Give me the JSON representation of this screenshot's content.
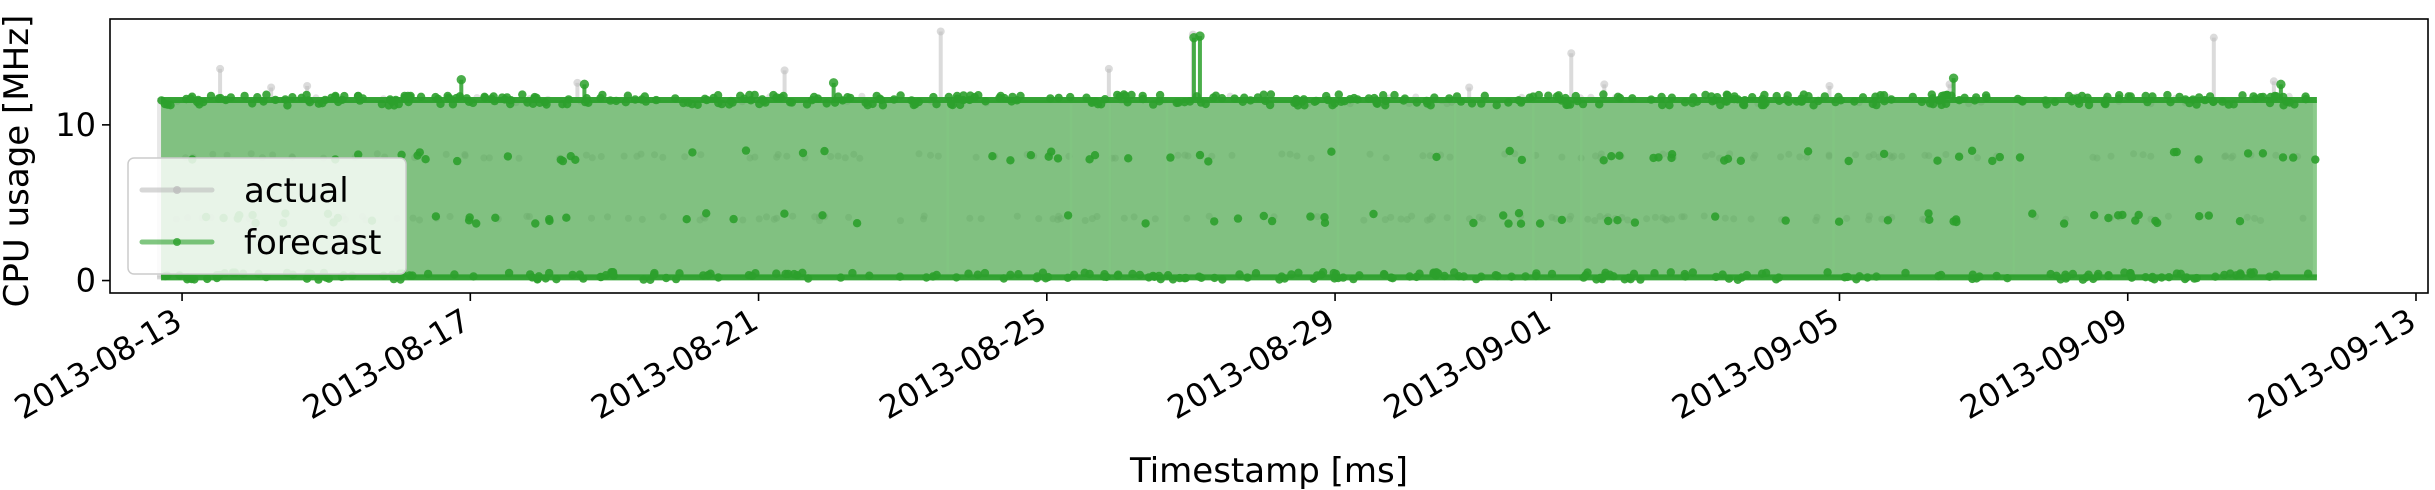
{
  "chart_data": {
    "type": "line",
    "title": "",
    "xlabel": "Timestamp [ms]",
    "ylabel": "CPU usage [MHz]",
    "ylim": [
      -0.8,
      16.8
    ],
    "x_range": [
      "2013-08-12T00:00",
      "2013-09-13T04:00"
    ],
    "x_data_range": [
      "2013-08-12T17:00",
      "2013-09-11T15:00"
    ],
    "x_ticks": [
      "2013-08-13",
      "2013-08-17",
      "2013-08-21",
      "2013-08-25",
      "2013-08-29",
      "2013-09-01",
      "2013-09-05",
      "2013-09-09",
      "2013-09-13"
    ],
    "y_ticks": [
      0,
      10
    ],
    "legend": {
      "placement": "lower-left",
      "entries": [
        "actual",
        "forecast"
      ]
    },
    "series": [
      {
        "name": "actual",
        "color": "#bdbdbd",
        "typical_range": [
          0.2,
          11.6
        ],
        "levels": [
          0.3,
          4.0,
          8.0,
          11.6
        ],
        "spikes": [
          {
            "t": "2013-08-13T14:00",
            "value": 13.6
          },
          {
            "t": "2013-08-14T07:00",
            "value": 12.4
          },
          {
            "t": "2013-08-14T19:00",
            "value": 12.5
          },
          {
            "t": "2013-08-18T13:00",
            "value": 12.7
          },
          {
            "t": "2013-08-21T10:00",
            "value": 13.5
          },
          {
            "t": "2013-08-23T14:00",
            "value": 16.0
          },
          {
            "t": "2013-08-25T22:00",
            "value": 13.6
          },
          {
            "t": "2013-08-27T02:00",
            "value": 15.8
          },
          {
            "t": "2013-08-30T22:00",
            "value": 12.4
          },
          {
            "t": "2013-09-01T08:00",
            "value": 14.6
          },
          {
            "t": "2013-09-01T19:00",
            "value": 12.6
          },
          {
            "t": "2013-09-04T22:00",
            "value": 12.5
          },
          {
            "t": "2013-09-06T14:00",
            "value": 12.6
          },
          {
            "t": "2013-09-10T06:00",
            "value": 15.6
          },
          {
            "t": "2013-09-11T02:00",
            "value": 12.8
          }
        ],
        "dips": [
          "2013-08-23T15:00",
          "2013-08-25T08:00",
          "2013-08-25T21:00",
          "2013-08-26T16:00",
          "2013-08-29T01:00",
          "2013-08-30T16:00",
          "2013-08-31T18:00",
          "2013-09-01T10:00",
          "2013-09-04T22:00",
          "2013-09-07T10:00"
        ]
      },
      {
        "name": "forecast",
        "color": "#2ca02c",
        "typical_range": [
          0.2,
          11.6
        ],
        "levels": [
          0.3,
          4.0,
          8.0,
          11.6
        ],
        "spikes": [
          {
            "t": "2013-08-16T21:00",
            "value": 12.9
          },
          {
            "t": "2013-08-18T14:00",
            "value": 12.6
          },
          {
            "t": "2013-08-22T01:00",
            "value": 12.7
          },
          {
            "t": "2013-08-27T01:00",
            "value": 15.6
          },
          {
            "t": "2013-08-27T03:00",
            "value": 15.7
          },
          {
            "t": "2013-09-06T14:00",
            "value": 13.0
          },
          {
            "t": "2013-09-11T03:00",
            "value": 12.6
          }
        ]
      }
    ]
  }
}
